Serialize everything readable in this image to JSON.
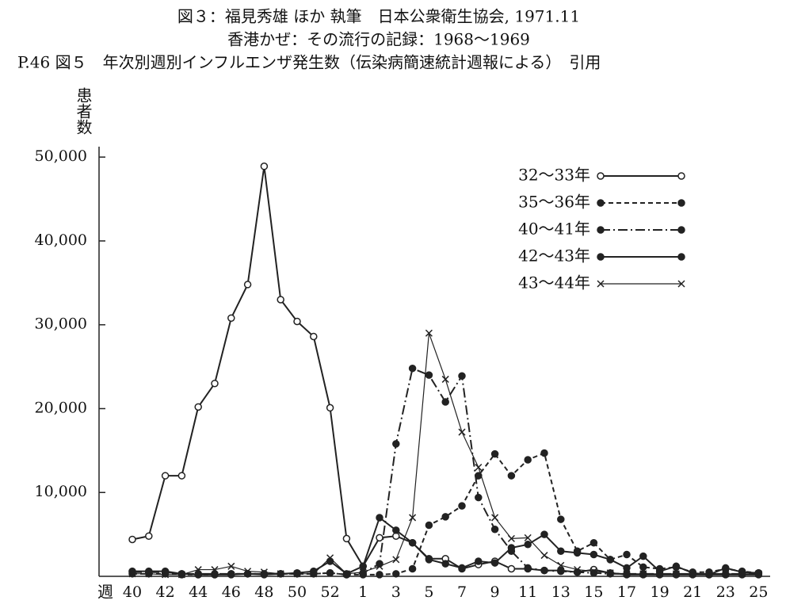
{
  "chart_data": {
    "type": "line",
    "title": "図３：福見秀雄 ほか 執筆　日本公衆衛生協会, 1971.11",
    "subtitle": "香港かぜ：その流行の記録：1968〜1969",
    "caption": "P.46 図５　年次別週別インフルエンザ発生数（伝染病簡速統計週報による）　引用",
    "y_label": "患者数",
    "x_label": "週",
    "categories": [
      "40",
      null,
      "42",
      null,
      "44",
      null,
      "46",
      null,
      "48",
      null,
      "50",
      null,
      "52",
      null,
      "1",
      null,
      "3",
      null,
      "5",
      null,
      "7",
      null,
      "9",
      null,
      "11",
      null,
      "13",
      null,
      "15",
      null,
      "17",
      null,
      "19",
      null,
      "21",
      null,
      "23",
      null,
      "25"
    ],
    "ylim": [
      0,
      52000
    ],
    "yticks": [
      {
        "value": 10000,
        "label": "10,000"
      },
      {
        "value": 20000,
        "label": "20,000"
      },
      {
        "value": 30000,
        "label": "30,000"
      },
      {
        "value": 40000,
        "label": "40,000"
      },
      {
        "value": 50000,
        "label": "50,000"
      }
    ],
    "grid": false,
    "legend": "upper right",
    "series": [
      {
        "name": "32〜33年",
        "color": "#222222",
        "line_style": "solid",
        "marker": "open-circle",
        "values": [
          4400,
          4800,
          12000,
          12000,
          20200,
          23000,
          30800,
          34800,
          48900,
          33000,
          30400,
          28600,
          20100,
          4500,
          1200,
          4600,
          4800,
          4000,
          2100,
          2100,
          900,
          1400,
          1800,
          900,
          900,
          700,
          700,
          500,
          800,
          400,
          200,
          200,
          200,
          200,
          200,
          200,
          200,
          200,
          200
        ]
      },
      {
        "name": "35〜36年",
        "color": "#222222",
        "line_style": "dashed",
        "marker": "dot",
        "values": [
          300,
          300,
          300,
          200,
          200,
          200,
          300,
          300,
          300,
          300,
          300,
          300,
          400,
          200,
          200,
          200,
          300,
          900,
          6100,
          7100,
          8400,
          12000,
          14600,
          12000,
          13900,
          14700,
          6800,
          3000,
          4000,
          2000,
          2600,
          1100,
          900,
          1100,
          500,
          500,
          900,
          600,
          400
        ]
      },
      {
        "name": "40〜41年",
        "color": "#222222",
        "line_style": "dashdot",
        "marker": "dot",
        "values": [
          500,
          500,
          500,
          300,
          300,
          300,
          300,
          300,
          300,
          300,
          300,
          300,
          400,
          200,
          400,
          1500,
          15800,
          24800,
          24000,
          20800,
          23900,
          9400,
          5600,
          3000,
          1000,
          700,
          600,
          500,
          400,
          300,
          300,
          300,
          300,
          300,
          300,
          300,
          300,
          300,
          300
        ]
      },
      {
        "name": "42〜43年",
        "color": "#222222",
        "line_style": "solid",
        "marker": "dot",
        "values": [
          600,
          600,
          600,
          300,
          200,
          200,
          200,
          300,
          200,
          300,
          400,
          600,
          1800,
          300,
          1200,
          7000,
          5500,
          4000,
          2000,
          1500,
          1000,
          1800,
          1600,
          3400,
          3800,
          5000,
          3000,
          2800,
          2600,
          2000,
          1000,
          2400,
          600,
          1200,
          400,
          200,
          1000,
          500,
          400
        ]
      },
      {
        "name": "43〜44年",
        "color": "#222222",
        "line_style": "thin",
        "marker": "x",
        "values": [
          300,
          300,
          200,
          200,
          800,
          800,
          1200,
          600,
          500,
          300,
          300,
          300,
          2200,
          300,
          500,
          1200,
          2000,
          7000,
          29000,
          23500,
          17200,
          13000,
          7000,
          4500,
          4600,
          2500,
          1300,
          800,
          600,
          400,
          300,
          300,
          300,
          300,
          300,
          300,
          300,
          300,
          300
        ]
      }
    ]
  }
}
